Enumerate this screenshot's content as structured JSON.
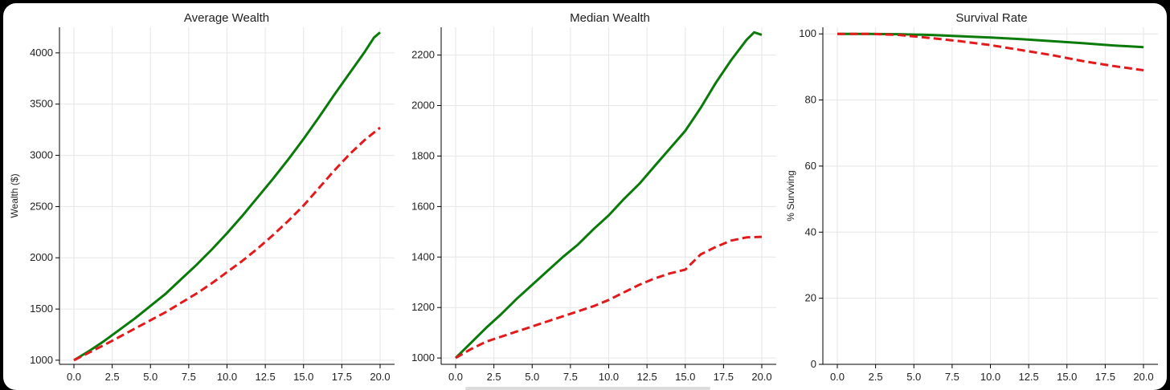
{
  "colors": {
    "series_a": "#0a7a0a",
    "series_b": "#e31a1c",
    "grid": "#e6e6e6",
    "axis": "#000000",
    "text": "#1f1f1f"
  },
  "chart_data": [
    {
      "type": "line",
      "title": "Average Wealth",
      "xlabel": "",
      "ylabel": "Wealth ($)",
      "xlim": [
        0,
        20
      ],
      "ylim": [
        960,
        4250
      ],
      "xticks": [
        "0.0",
        "2.5",
        "5.0",
        "7.5",
        "10.0",
        "12.5",
        "15.0",
        "17.5",
        "20.0"
      ],
      "yticks": [
        "1000",
        "1500",
        "2000",
        "2500",
        "3000",
        "3500",
        "4000"
      ],
      "grid": true,
      "series": [
        {
          "color": "#0a7a0a",
          "style": "solid",
          "x": [
            0,
            1,
            2,
            3,
            4,
            5,
            6,
            7,
            8,
            9,
            10,
            11,
            12,
            13,
            14,
            15,
            16,
            17,
            18,
            19,
            19.6,
            20
          ],
          "y": [
            1000,
            1090,
            1190,
            1300,
            1410,
            1530,
            1650,
            1790,
            1930,
            2080,
            2240,
            2410,
            2590,
            2770,
            2960,
            3160,
            3370,
            3590,
            3800,
            4010,
            4150,
            4200
          ]
        },
        {
          "color": "#e31a1c",
          "style": "dashed",
          "x": [
            0,
            1,
            2,
            3,
            4,
            5,
            6,
            7,
            8,
            9,
            10,
            11,
            12,
            13,
            14,
            15,
            16,
            17,
            18,
            19,
            20
          ],
          "y": [
            1000,
            1075,
            1150,
            1230,
            1310,
            1390,
            1470,
            1560,
            1650,
            1750,
            1860,
            1970,
            2090,
            2220,
            2360,
            2510,
            2680,
            2850,
            3010,
            3150,
            3270
          ]
        }
      ]
    },
    {
      "type": "line",
      "title": "Median Wealth",
      "xlabel": "",
      "ylabel": "",
      "xlim": [
        0,
        20
      ],
      "ylim": [
        975,
        2310
      ],
      "xticks": [
        "0.0",
        "2.5",
        "5.0",
        "7.5",
        "10.0",
        "12.5",
        "15.0",
        "17.5",
        "20.0"
      ],
      "yticks": [
        "1000",
        "1200",
        "1400",
        "1600",
        "1800",
        "2000",
        "2200"
      ],
      "grid": true,
      "series": [
        {
          "color": "#0a7a0a",
          "style": "solid",
          "x": [
            0,
            1,
            2,
            3,
            4,
            5,
            6,
            7,
            8,
            9,
            10,
            11,
            12,
            13,
            14,
            15,
            16,
            17,
            18,
            19,
            19.5,
            20
          ],
          "y": [
            1000,
            1060,
            1120,
            1175,
            1235,
            1290,
            1345,
            1400,
            1450,
            1510,
            1565,
            1630,
            1690,
            1760,
            1830,
            1900,
            1990,
            2090,
            2180,
            2260,
            2290,
            2280
          ]
        },
        {
          "color": "#e31a1c",
          "style": "dashed",
          "x": [
            0,
            1,
            2,
            3,
            4,
            5,
            6,
            7,
            8,
            9,
            10,
            11,
            12,
            13,
            14,
            15,
            16,
            17,
            18,
            19,
            20
          ],
          "y": [
            1000,
            1035,
            1065,
            1085,
            1105,
            1125,
            1145,
            1165,
            1185,
            1205,
            1230,
            1260,
            1290,
            1315,
            1335,
            1350,
            1410,
            1440,
            1465,
            1478,
            1480
          ]
        }
      ]
    },
    {
      "type": "line",
      "title": "Survival Rate",
      "xlabel": "",
      "ylabel": "% Surviving",
      "xlim": [
        0,
        20
      ],
      "ylim": [
        0,
        102
      ],
      "xticks": [
        "0.0",
        "2.5",
        "5.0",
        "7.5",
        "10.0",
        "12.5",
        "15.0",
        "17.5",
        "20.0"
      ],
      "yticks": [
        "0",
        "20",
        "40",
        "60",
        "80",
        "100"
      ],
      "grid": true,
      "series": [
        {
          "color": "#0a7a0a",
          "style": "solid",
          "x": [
            0,
            2,
            4,
            6,
            8,
            10,
            12,
            14,
            16,
            18,
            20
          ],
          "y": [
            100,
            100,
            99.9,
            99.7,
            99.3,
            98.9,
            98.4,
            97.8,
            97.2,
            96.5,
            96
          ]
        },
        {
          "color": "#e31a1c",
          "style": "dashed",
          "x": [
            0,
            2,
            4,
            6,
            8,
            10,
            12,
            14,
            16,
            18,
            20
          ],
          "y": [
            100,
            100,
            99.7,
            98.8,
            97.8,
            96.6,
            95.1,
            93.6,
            91.8,
            90.3,
            89
          ]
        }
      ]
    }
  ]
}
